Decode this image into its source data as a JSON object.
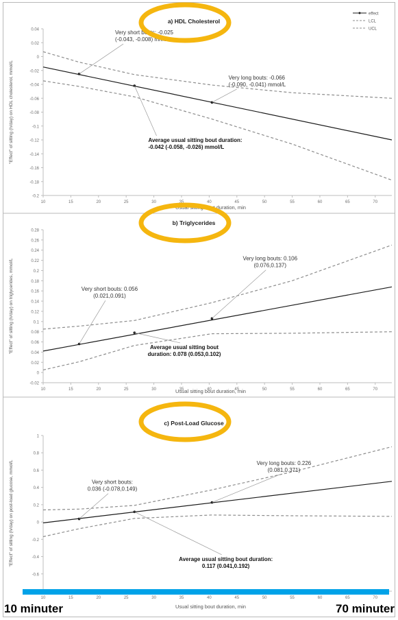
{
  "colors": {
    "effect": "#1a1a1a",
    "ci": "#8c8c8c",
    "highlight": "#f5b60f",
    "bar": "#00a2e8",
    "frame": "#b9b9b9"
  },
  "legend": {
    "items": [
      "effect",
      "LCL",
      "UCL"
    ],
    "position": "top-right"
  },
  "overlay": {
    "left_label": "10 minuter",
    "right_label": "70 minuter"
  },
  "chart_data": [
    {
      "type": "line",
      "title": "a) HDL Cholesterol",
      "xlabel": "Usual sitting bout duration, min",
      "ylabel": "\"Effect\" of sitting (h/day) on HDL cholesterol, mmol/L",
      "xlim": [
        10,
        73
      ],
      "ylim": [
        -0.2,
        0.04
      ],
      "xticks": [
        10,
        15,
        20,
        25,
        30,
        35,
        40,
        45,
        50,
        55,
        60,
        65,
        70
      ],
      "yticks": [
        -0.2,
        -0.18,
        -0.16,
        -0.14,
        -0.12,
        -0.1,
        -0.08,
        -0.06,
        -0.04,
        -0.02,
        0,
        0.02,
        0.04
      ],
      "ytick_labels": [
        "-0.2",
        "-0.18",
        "-0.16",
        "-0.14",
        "-0.12",
        "-0.1",
        "-0.08",
        "-0.06",
        "-0.04",
        "-0.02",
        "0",
        "0.02",
        "0.04"
      ],
      "series": [
        {
          "name": "effect",
          "x": [
            10,
            73
          ],
          "y": [
            -0.015,
            -0.12
          ]
        },
        {
          "name": "LCL",
          "x": [
            10,
            16.5,
            26.5,
            40.5,
            55,
            73
          ],
          "y": [
            -0.035,
            -0.043,
            -0.058,
            -0.09,
            -0.126,
            -0.178
          ]
        },
        {
          "name": "UCL",
          "x": [
            10,
            16.5,
            26.5,
            40.5,
            55,
            73
          ],
          "y": [
            0.007,
            -0.008,
            -0.026,
            -0.041,
            -0.052,
            -0.06
          ]
        }
      ],
      "points": [
        {
          "x": 16.5,
          "y": -0.025
        },
        {
          "x": 26.5,
          "y": -0.042
        },
        {
          "x": 40.5,
          "y": -0.066
        }
      ],
      "annotations": [
        {
          "lines": [
            "Very short bouts: -0.025",
            "(-0.043, -0.008) mmol/L"
          ],
          "x": 23,
          "y": 0.032,
          "bold": false,
          "anchor": "start",
          "pointer": {
            "x": 16.5,
            "y": -0.025
          }
        },
        {
          "lines": [
            "Very long bouts: -0.066",
            "(-0.090, -0.041) mmol/L"
          ],
          "x": 43.5,
          "y": -0.033,
          "bold": false,
          "anchor": "start",
          "pointer": {
            "x": 40.5,
            "y": -0.066
          }
        },
        {
          "lines": [
            "Average usual sitting bout duration:",
            "-0.042 (-0.058, -0.026) mmol/L"
          ],
          "x": 29,
          "y": -0.123,
          "bold": true,
          "anchor": "start",
          "pointer": {
            "x": 26.5,
            "y": -0.042
          }
        }
      ],
      "show_legend": true
    },
    {
      "type": "line",
      "title": "b) Triglycerides",
      "xlabel": "Usual sitting bout duration, min",
      "ylabel": "\"Effect\" of sitting (h/day) on triglycerides, mmol/L",
      "xlim": [
        10,
        73
      ],
      "ylim": [
        -0.02,
        0.28
      ],
      "xticks": [
        10,
        15,
        20,
        25,
        30,
        35,
        40,
        45,
        50,
        55,
        60,
        65,
        70
      ],
      "yticks": [
        -0.02,
        0,
        0.02,
        0.04,
        0.06,
        0.08,
        0.1,
        0.12,
        0.14,
        0.16,
        0.18,
        0.2,
        0.22,
        0.24,
        0.26,
        0.28
      ],
      "ytick_labels": [
        "-0.02",
        "0",
        "0.02",
        "0.04",
        "0.06",
        "0.08",
        "0.1",
        "0.12",
        "0.14",
        "0.16",
        "0.18",
        "0.2",
        "0.22",
        "0.24",
        "0.26",
        "0.28"
      ],
      "series": [
        {
          "name": "effect",
          "x": [
            10,
            73
          ],
          "y": [
            0.042,
            0.168
          ]
        },
        {
          "name": "LCL",
          "x": [
            10,
            16.5,
            26.5,
            40.5,
            55,
            73
          ],
          "y": [
            0.005,
            0.021,
            0.053,
            0.076,
            0.077,
            0.08
          ]
        },
        {
          "name": "UCL",
          "x": [
            10,
            16.5,
            26.5,
            40.5,
            55,
            73
          ],
          "y": [
            0.085,
            0.091,
            0.102,
            0.137,
            0.18,
            0.25
          ]
        }
      ],
      "points": [
        {
          "x": 16.5,
          "y": 0.056
        },
        {
          "x": 26.5,
          "y": 0.078
        },
        {
          "x": 40.5,
          "y": 0.106
        }
      ],
      "annotations": [
        {
          "lines": [
            "Very short bouts: 0.056",
            "(0.021,0.091)"
          ],
          "x": 22,
          "y": 0.16,
          "bold": false,
          "anchor": "middle",
          "pointer": {
            "x": 16.5,
            "y": 0.056
          }
        },
        {
          "lines": [
            "Very long bouts: 0.106",
            "(0.076,0.137)"
          ],
          "x": 51,
          "y": 0.22,
          "bold": false,
          "anchor": "middle",
          "pointer": {
            "x": 40.5,
            "y": 0.106
          }
        },
        {
          "lines": [
            "Average usual sitting bout",
            "duration: 0.078 (0.053,0.102)"
          ],
          "x": 35.5,
          "y": 0.046,
          "bold": true,
          "anchor": "middle",
          "pointer": {
            "x": 26.5,
            "y": 0.078
          }
        }
      ],
      "show_legend": false
    },
    {
      "type": "line",
      "title": "c) Post-Load Glucose",
      "xlabel": "Usual sitting bout duration, min",
      "ylabel": "\"Effect\" of sitting (h/day) on post-load glucose, mmol/L",
      "xlim": [
        10,
        73
      ],
      "ylim": [
        -0.8,
        1
      ],
      "xticks": [
        10,
        15,
        20,
        25,
        30,
        35,
        40,
        45,
        50,
        55,
        60,
        65,
        70
      ],
      "yticks": [
        -0.8,
        -0.6,
        -0.4,
        -0.2,
        0,
        0.2,
        0.4,
        0.6,
        0.8,
        1
      ],
      "ytick_labels": [
        "-0.8",
        "-0.6",
        "-0.4",
        "-0.2",
        "0",
        "0.2",
        "0.4",
        "0.6",
        "0.8",
        "1"
      ],
      "series": [
        {
          "name": "effect",
          "x": [
            10,
            73
          ],
          "y": [
            -0.01,
            0.47
          ]
        },
        {
          "name": "LCL",
          "x": [
            10,
            16.5,
            26.5,
            40.5,
            55,
            73
          ],
          "y": [
            -0.17,
            -0.078,
            0.041,
            0.081,
            0.072,
            0.065
          ]
        },
        {
          "name": "UCL",
          "x": [
            10,
            16.5,
            26.5,
            40.5,
            55,
            73
          ],
          "y": [
            0.14,
            0.149,
            0.192,
            0.371,
            0.58,
            0.87
          ]
        }
      ],
      "points": [
        {
          "x": 16.5,
          "y": 0.036
        },
        {
          "x": 26.5,
          "y": 0.117
        },
        {
          "x": 40.5,
          "y": 0.226
        }
      ],
      "annotations": [
        {
          "lines": [
            "Very short bouts:",
            "0.036 (-0.078,0.149)"
          ],
          "x": 22.5,
          "y": 0.44,
          "bold": false,
          "anchor": "middle",
          "pointer": {
            "x": 16.5,
            "y": 0.036
          }
        },
        {
          "lines": [
            "Very long bouts: 0.226",
            "(0.081,0.371)"
          ],
          "x": 53.5,
          "y": 0.66,
          "bold": false,
          "anchor": "middle",
          "pointer": {
            "x": 40.5,
            "y": 0.226
          }
        },
        {
          "lines": [
            "Average usual sitting bout duration:",
            "0.117 (0.041,0.192)"
          ],
          "x": 43,
          "y": -0.45,
          "bold": true,
          "anchor": "middle",
          "pointer": {
            "x": 26.5,
            "y": 0.117
          }
        }
      ],
      "show_legend": false
    }
  ]
}
